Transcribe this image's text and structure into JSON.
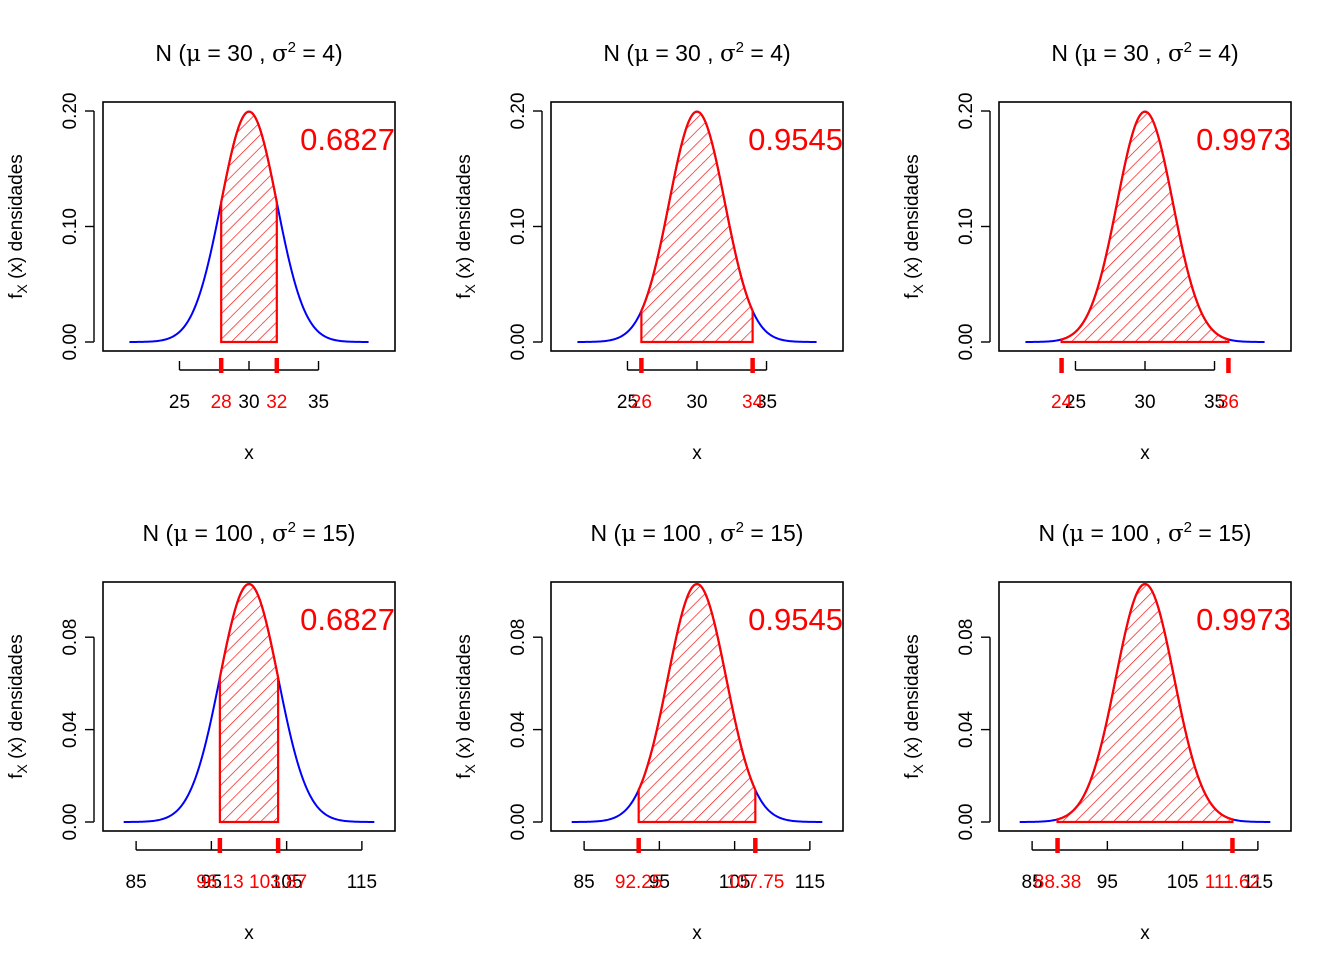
{
  "colors": {
    "curve": "#0000FF",
    "region": "#FF0000",
    "axis": "#000000"
  },
  "chart_data": [
    {
      "type": "area",
      "title": {
        "prefix": "N (",
        "mu_sym": "μ",
        "mid": " = 30 , ",
        "sigma_sym": "σ",
        "sup": "2",
        "suffix": " = 4)"
      },
      "xlabel": "x",
      "ylabel": {
        "f": "f",
        "sub": "X",
        "rest": " (x)  densidades"
      },
      "mean": 30,
      "sd": 2,
      "xlim": [
        19.5,
        40.5
      ],
      "ylim": [
        0,
        0.2
      ],
      "xticks": [
        "25",
        "30",
        "35"
      ],
      "yticks": [
        "0.00",
        "0.10",
        "0.20"
      ],
      "shade": [
        28,
        32
      ],
      "shade_labels": [
        "28",
        "32"
      ],
      "prob": "0.6827"
    },
    {
      "type": "area",
      "title": {
        "prefix": "N (",
        "mu_sym": "μ",
        "mid": " = 30 , ",
        "sigma_sym": "σ",
        "sup": "2",
        "suffix": " = 4)"
      },
      "xlabel": "x",
      "ylabel": {
        "f": "f",
        "sub": "X",
        "rest": " (x)  densidades"
      },
      "mean": 30,
      "sd": 2,
      "xlim": [
        19.5,
        40.5
      ],
      "ylim": [
        0,
        0.2
      ],
      "xticks": [
        "25",
        "30",
        "35"
      ],
      "yticks": [
        "0.00",
        "0.10",
        "0.20"
      ],
      "shade": [
        26,
        34
      ],
      "shade_labels": [
        "26",
        "34"
      ],
      "prob": "0.9545"
    },
    {
      "type": "area",
      "title": {
        "prefix": "N (",
        "mu_sym": "μ",
        "mid": " = 30 , ",
        "sigma_sym": "σ",
        "sup": "2",
        "suffix": " = 4)"
      },
      "xlabel": "x",
      "ylabel": {
        "f": "f",
        "sub": "X",
        "rest": " (x)  densidades"
      },
      "mean": 30,
      "sd": 2,
      "xlim": [
        19.5,
        40.5
      ],
      "ylim": [
        0,
        0.2
      ],
      "xticks": [
        "25",
        "30",
        "35"
      ],
      "yticks": [
        "0.00",
        "0.10",
        "0.20"
      ],
      "shade": [
        24,
        36
      ],
      "shade_labels": [
        "24",
        "36"
      ],
      "prob": "0.9973"
    },
    {
      "type": "area",
      "title": {
        "prefix": "N (",
        "mu_sym": "μ",
        "mid": " = 100 , ",
        "sigma_sym": "σ",
        "sup": "2",
        "suffix": " = 15)"
      },
      "xlabel": "x",
      "ylabel": {
        "f": "f",
        "sub": "X",
        "rest": " (x)  densidades"
      },
      "mean": 100,
      "sd": 3.873,
      "xlim": [
        80.6,
        119.4
      ],
      "ylim": [
        0,
        0.1
      ],
      "xticks": [
        "85",
        "95",
        "105",
        "115"
      ],
      "yticks": [
        "0.00",
        "0.04",
        "0.08"
      ],
      "shade": [
        96.13,
        103.87
      ],
      "shade_labels": [
        "96.13",
        "103.87"
      ],
      "prob": "0.6827"
    },
    {
      "type": "area",
      "title": {
        "prefix": "N (",
        "mu_sym": "μ",
        "mid": " = 100 , ",
        "sigma_sym": "σ",
        "sup": "2",
        "suffix": " = 15)"
      },
      "xlabel": "x",
      "ylabel": {
        "f": "f",
        "sub": "X",
        "rest": " (x)  densidades"
      },
      "mean": 100,
      "sd": 3.873,
      "xlim": [
        80.6,
        119.4
      ],
      "ylim": [
        0,
        0.1
      ],
      "xticks": [
        "85",
        "95",
        "105",
        "115"
      ],
      "yticks": [
        "0.00",
        "0.04",
        "0.08"
      ],
      "shade": [
        92.25,
        107.75
      ],
      "shade_labels": [
        "92.25",
        "107.75"
      ],
      "prob": "0.9545"
    },
    {
      "type": "area",
      "title": {
        "prefix": "N (",
        "mu_sym": "μ",
        "mid": " = 100 , ",
        "sigma_sym": "σ",
        "sup": "2",
        "suffix": " = 15)"
      },
      "xlabel": "x",
      "ylabel": {
        "f": "f",
        "sub": "X",
        "rest": " (x)  densidades"
      },
      "mean": 100,
      "sd": 3.873,
      "xlim": [
        80.6,
        119.4
      ],
      "ylim": [
        0,
        0.1
      ],
      "xticks": [
        "85",
        "95",
        "105",
        "115"
      ],
      "yticks": [
        "0.00",
        "0.04",
        "0.08"
      ],
      "shade": [
        88.38,
        111.62
      ],
      "shade_labels": [
        "88.38",
        "111.62"
      ],
      "prob": "0.9973"
    }
  ]
}
